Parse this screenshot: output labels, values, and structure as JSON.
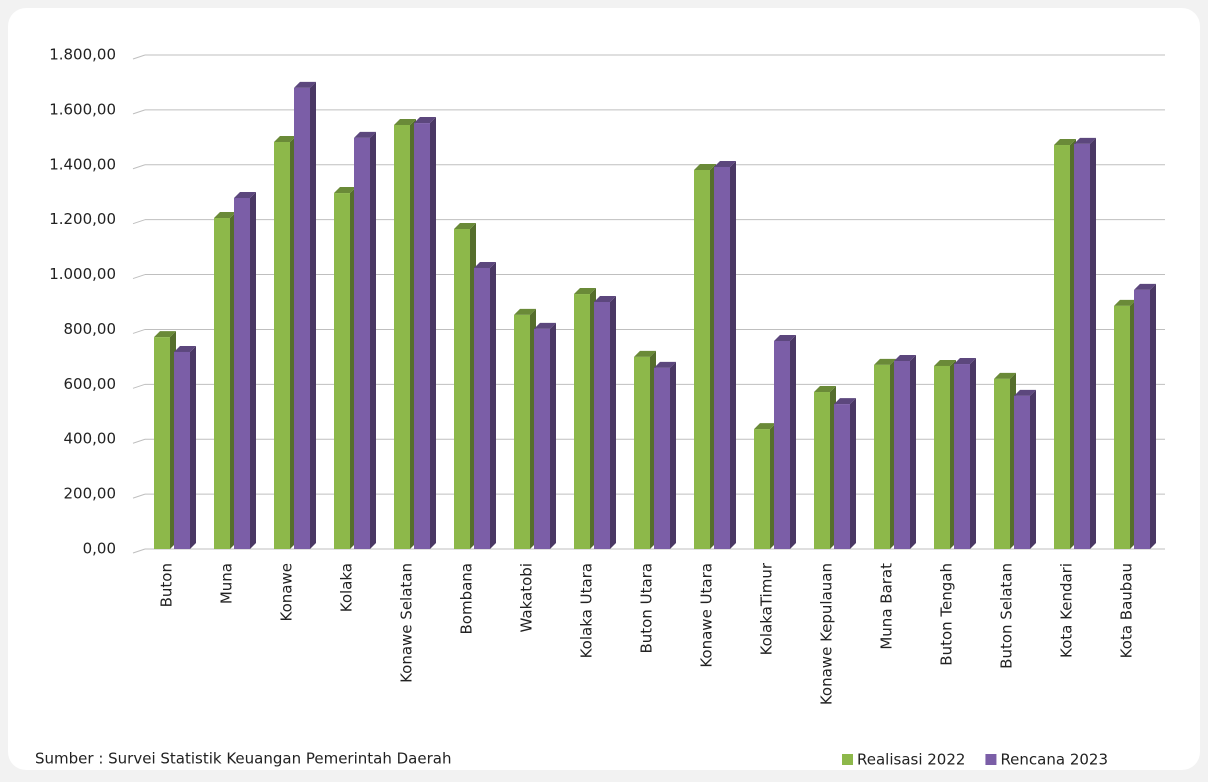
{
  "chart_data": {
    "type": "bar",
    "categories": [
      "Buton",
      "Muna",
      "Konawe",
      "Kolaka",
      "Konawe Selatan",
      "Bombana",
      "Wakatobi",
      "Kolaka Utara",
      "Buton Utara",
      "Konawe Utara",
      "KolakaTimur",
      "Konawe Kepulauan",
      "Muna Barat",
      "Buton Tengah",
      "Buton Selatan",
      "Kota Kendari",
      "Kota Baubau"
    ],
    "series": [
      {
        "name": "Realisasi 2022",
        "color": "#8db84a",
        "values": [
          772,
          1206,
          1483,
          1297,
          1545,
          1166,
          853,
          929,
          700,
          1381,
          437,
          572,
          671,
          667,
          620,
          1472,
          886
        ]
      },
      {
        "name": "Rencana 2023",
        "color": "#7b5ea7",
        "values": [
          718,
          1279,
          1680,
          1498,
          1552,
          1024,
          802,
          900,
          660,
          1392,
          758,
          528,
          685,
          674,
          558,
          1476,
          944
        ]
      }
    ],
    "ylim": [
      0,
      1800
    ],
    "yticks": [
      {
        "value": 0,
        "label": "0,00"
      },
      {
        "value": 200,
        "label": "200,00"
      },
      {
        "value": 400,
        "label": "400,00"
      },
      {
        "value": 600,
        "label": "600,00"
      },
      {
        "value": 800,
        "label": "800,00"
      },
      {
        "value": 1000,
        "label": "1.000,00"
      },
      {
        "value": 1200,
        "label": "1.200,00"
      },
      {
        "value": 1400,
        "label": "1.400,00"
      },
      {
        "value": 1600,
        "label": "1.600,00"
      },
      {
        "value": 1800,
        "label": "1.800,00"
      }
    ],
    "grid": true,
    "source": "Sumber : Survei Statistik Keuangan Pemerintah Daerah"
  }
}
